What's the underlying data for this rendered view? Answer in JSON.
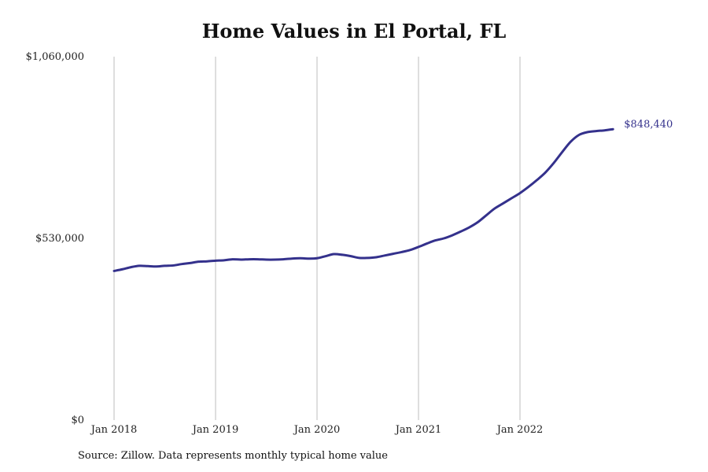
{
  "chart_data": {
    "type": "line",
    "title": "Home Values in El Portal, FL",
    "xlabel": "",
    "ylabel": "",
    "ylim": [
      0,
      1060000
    ],
    "xlim": [
      "2018-01",
      "2022-12"
    ],
    "grid": {
      "vertical": true,
      "horizontal": false
    },
    "yticks": [
      {
        "value": 0,
        "label": "$0"
      },
      {
        "value": 530000,
        "label": "$530,000"
      },
      {
        "value": 1060000,
        "label": "$1,060,000"
      }
    ],
    "xticks": [
      {
        "value": "2018-01",
        "label": "Jan 2018"
      },
      {
        "value": "2019-01",
        "label": "Jan 2019"
      },
      {
        "value": "2020-01",
        "label": "Jan 2020"
      },
      {
        "value": "2021-01",
        "label": "Jan 2021"
      },
      {
        "value": "2022-01",
        "label": "Jan 2022"
      }
    ],
    "series": [
      {
        "color": "#34318c",
        "x": [
          "2018-01",
          "2018-02",
          "2018-03",
          "2018-04",
          "2018-05",
          "2018-06",
          "2018-07",
          "2018-08",
          "2018-09",
          "2018-10",
          "2018-11",
          "2018-12",
          "2019-01",
          "2019-02",
          "2019-03",
          "2019-04",
          "2019-05",
          "2019-06",
          "2019-07",
          "2019-08",
          "2019-09",
          "2019-10",
          "2019-11",
          "2019-12",
          "2020-01",
          "2020-02",
          "2020-03",
          "2020-04",
          "2020-05",
          "2020-06",
          "2020-07",
          "2020-08",
          "2020-09",
          "2020-10",
          "2020-11",
          "2020-12",
          "2021-01",
          "2021-02",
          "2021-03",
          "2021-04",
          "2021-05",
          "2021-06",
          "2021-07",
          "2021-08",
          "2021-09",
          "2021-10",
          "2021-11",
          "2021-12",
          "2022-01",
          "2022-02",
          "2022-03",
          "2022-04",
          "2022-05",
          "2022-06",
          "2022-07",
          "2022-08",
          "2022-09",
          "2022-10",
          "2022-11",
          "2022-12"
        ],
        "values": [
          435000,
          440000,
          446000,
          450000,
          449000,
          448000,
          450000,
          451000,
          455000,
          458000,
          462000,
          463000,
          465000,
          466000,
          469000,
          468000,
          469000,
          469000,
          468000,
          468000,
          469000,
          471000,
          472000,
          471000,
          472000,
          478000,
          484000,
          482000,
          478000,
          473000,
          473000,
          475000,
          480000,
          485000,
          490000,
          496000,
          505000,
          515000,
          524000,
          530000,
          539000,
          550000,
          562000,
          577000,
          597000,
          617000,
          632000,
          647000,
          662000,
          680000,
          700000,
          722000,
          750000,
          782000,
          812000,
          832000,
          840000,
          843000,
          845000,
          848440
        ],
        "end_label": "$848,440"
      }
    ]
  },
  "footer": {
    "source": "Source: Zillow. Data represents monthly typical home value"
  }
}
